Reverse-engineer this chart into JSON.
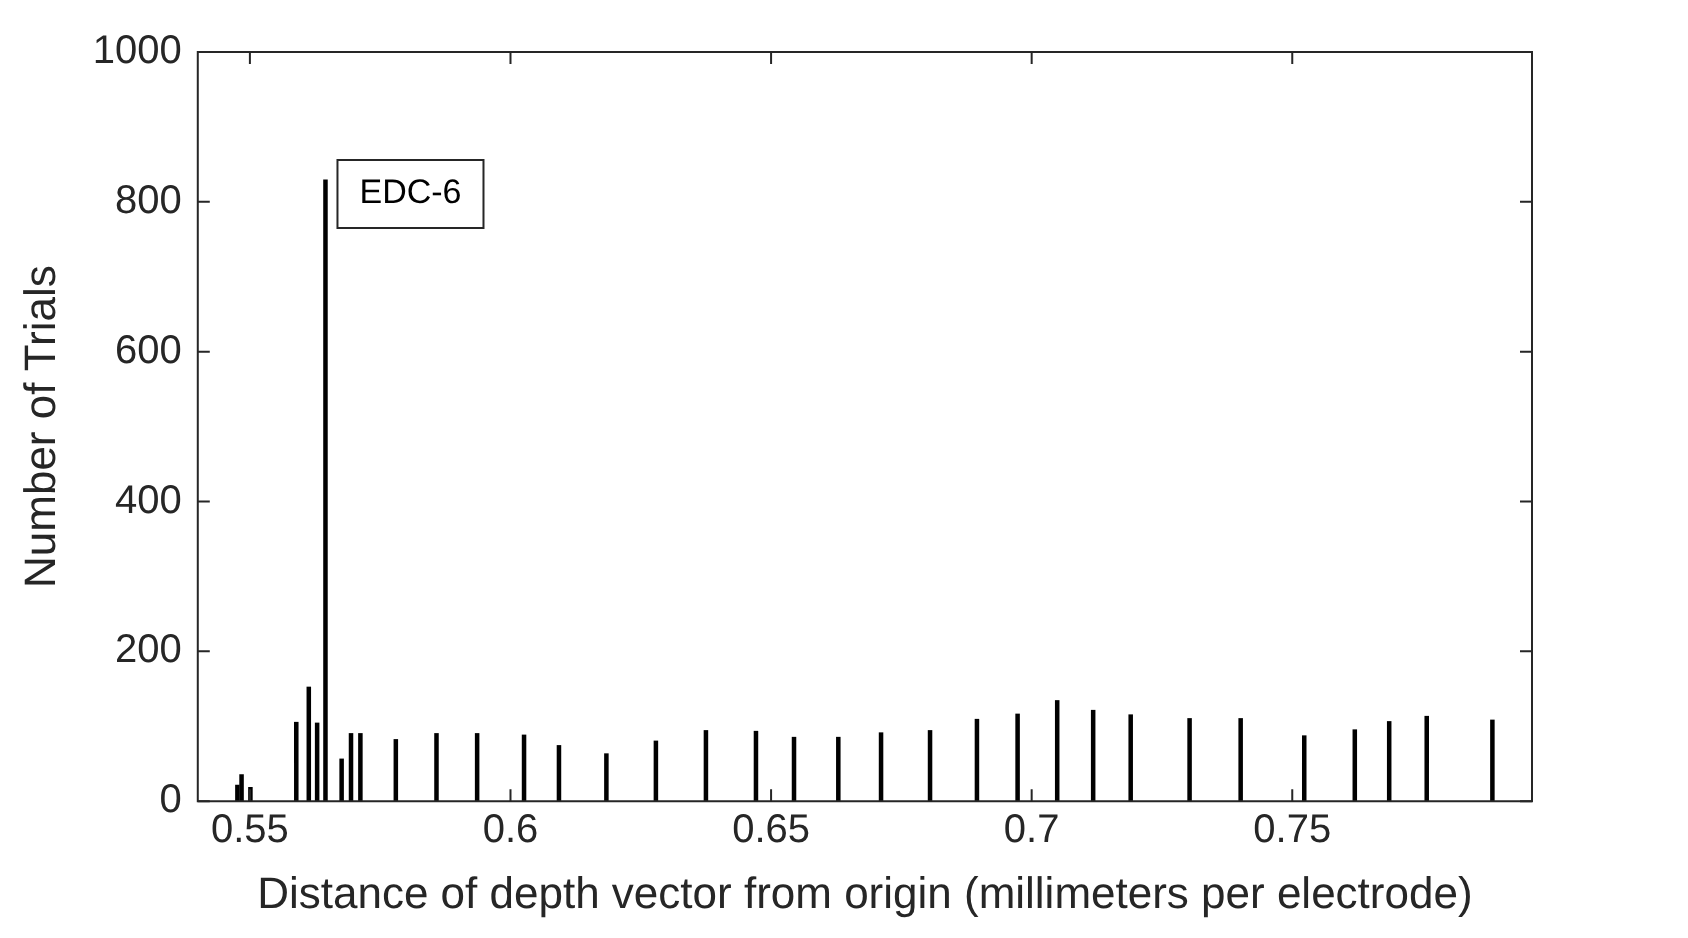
{
  "chart_data": {
    "type": "bar",
    "xlabel": "Distance of depth vector from origin (millimeters per electrode)",
    "ylabel": "Number of Trials",
    "x": [
      0.5476,
      0.5484,
      0.5501,
      0.5589,
      0.5613,
      0.5629,
      0.5645,
      0.5676,
      0.5694,
      0.5712,
      0.578,
      0.5858,
      0.5936,
      0.6026,
      0.6093,
      0.6184,
      0.6279,
      0.6375,
      0.6471,
      0.6544,
      0.6629,
      0.6711,
      0.6805,
      0.6895,
      0.6973,
      0.7049,
      0.7118,
      0.719,
      0.7303,
      0.7401,
      0.7523,
      0.762,
      0.7686,
      0.7758,
      0.7884
    ],
    "values": [
      21,
      35,
      18,
      105,
      152,
      104,
      829,
      56,
      90,
      90,
      82,
      90,
      90,
      88,
      74,
      63,
      80,
      94,
      93,
      85,
      85,
      91,
      94,
      109,
      116,
      134,
      121,
      115,
      110,
      110,
      87,
      95,
      106,
      113,
      108
    ],
    "color": "#000000",
    "xlim": [
      0.54,
      0.796
    ],
    "xticks": [
      {
        "value": 0.55,
        "label": "0.55"
      },
      {
        "value": 0.6,
        "label": "0.6"
      },
      {
        "value": 0.65,
        "label": "0.65"
      },
      {
        "value": 0.7,
        "label": "0.7"
      },
      {
        "value": 0.75,
        "label": "0.75"
      }
    ],
    "ylim": [
      0,
      1000
    ],
    "yticks": [
      0,
      200,
      400,
      600,
      800,
      1000
    ],
    "grid": false,
    "annotations": [
      {
        "text": "EDC-6",
        "x": 0.5645,
        "y": 829
      }
    ]
  }
}
